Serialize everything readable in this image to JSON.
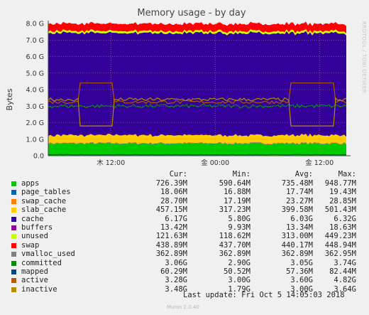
{
  "chart_data": {
    "type": "area",
    "title": "Memory usage - by day",
    "ylabel": "Bytes",
    "xlabel": "",
    "ylim": [
      0,
      8.0
    ],
    "yunit": "G",
    "yticks": [
      "0.0",
      "1.0 G",
      "2.0 G",
      "3.0 G",
      "4.0 G",
      "5.0 G",
      "6.0 G",
      "7.0 G",
      "8.0 G"
    ],
    "xticks": [
      {
        "label": "木 12:00",
        "t": 0.21
      },
      {
        "label": "金 00:00",
        "t": 0.56
      },
      {
        "label": "金 12:00",
        "t": 0.91
      }
    ],
    "grid": true,
    "stack": [
      {
        "name": "apps",
        "color": "#00cc00",
        "value": 0.73
      },
      {
        "name": "page_tables",
        "color": "#0066b3",
        "value": 0.02
      },
      {
        "name": "swap_cache",
        "color": "#ff8000",
        "value": 0.03
      },
      {
        "name": "slab_cache",
        "color": "#ffcc00",
        "value": 0.46
      },
      {
        "name": "cache",
        "color": "#330099",
        "value": 6.17
      },
      {
        "name": "buffers",
        "color": "#990099",
        "value": 0.01
      },
      {
        "name": "unused",
        "color": "#ccff00",
        "value": 0.12
      },
      {
        "name": "swap",
        "color": "#ff0000",
        "value": 0.44
      }
    ],
    "lines": [
      {
        "name": "committed",
        "color": "#008f00",
        "base": 3.0,
        "amp": 0.12
      },
      {
        "name": "mapped",
        "color": "#00487d",
        "base": 0.06,
        "amp": 0.01
      },
      {
        "name": "active",
        "color": "#b35a00",
        "base": 3.25,
        "amp": 0.1
      },
      {
        "name": "inactive",
        "color": "#b38f00",
        "base": 3.4,
        "amp": 0.1
      }
    ]
  },
  "legend": {
    "headers": {
      "cur": "Cur:",
      "min": "Min:",
      "avg": "Avg:",
      "max": "Max:"
    },
    "rows": [
      {
        "name": "apps",
        "color": "#00cc00",
        "cur": "726.39M",
        "min": "590.64M",
        "avg": "735.48M",
        "max": "948.77M"
      },
      {
        "name": "page_tables",
        "color": "#0066b3",
        "cur": "18.06M",
        "min": "16.88M",
        "avg": "17.74M",
        "max": "19.43M"
      },
      {
        "name": "swap_cache",
        "color": "#ff8000",
        "cur": "28.70M",
        "min": "17.19M",
        "avg": "23.27M",
        "max": "28.85M"
      },
      {
        "name": "slab_cache",
        "color": "#ffcc00",
        "cur": "457.15M",
        "min": "317.23M",
        "avg": "399.58M",
        "max": "501.43M"
      },
      {
        "name": "cache",
        "color": "#330099",
        "cur": "6.17G",
        "min": "5.80G",
        "avg": "6.03G",
        "max": "6.32G"
      },
      {
        "name": "buffers",
        "color": "#990099",
        "cur": "13.42M",
        "min": "9.93M",
        "avg": "13.34M",
        "max": "18.63M"
      },
      {
        "name": "unused",
        "color": "#ccff00",
        "cur": "121.63M",
        "min": "118.62M",
        "avg": "313.00M",
        "max": "449.23M"
      },
      {
        "name": "swap",
        "color": "#ff0000",
        "cur": "438.89M",
        "min": "437.70M",
        "avg": "440.17M",
        "max": "448.94M"
      },
      {
        "name": "vmalloc_used",
        "color": "#808080",
        "cur": "362.89M",
        "min": "362.89M",
        "avg": "362.89M",
        "max": "362.95M"
      },
      {
        "name": "committed",
        "color": "#008f00",
        "cur": "3.06G",
        "min": "2.90G",
        "avg": "3.05G",
        "max": "3.74G"
      },
      {
        "name": "mapped",
        "color": "#00487d",
        "cur": "60.29M",
        "min": "50.52M",
        "avg": "57.36M",
        "max": "82.44M"
      },
      {
        "name": "active",
        "color": "#b35a00",
        "cur": "3.28G",
        "min": "3.00G",
        "avg": "3.60G",
        "max": "4.82G"
      },
      {
        "name": "inactive",
        "color": "#b38f00",
        "cur": "3.48G",
        "min": "1.79G",
        "avg": "3.00G",
        "max": "3.64G"
      }
    ]
  },
  "footer": {
    "last_update": "Last update: Fri Oct  5 14:05:03 2018",
    "version": "Munin 2.0.40",
    "side_text": "RRDTOOL / TOBI OETIKER"
  }
}
